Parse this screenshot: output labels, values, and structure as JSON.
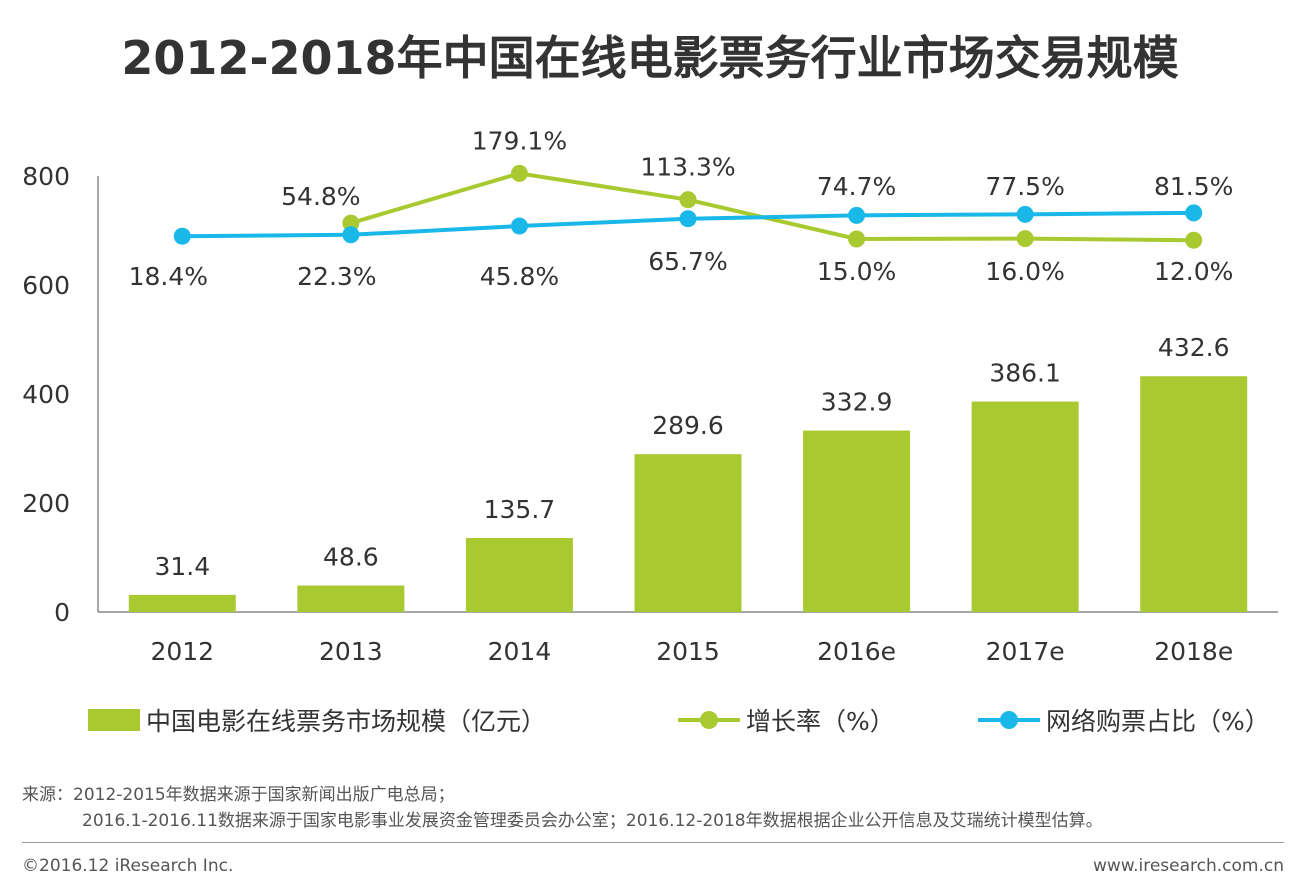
{
  "title": "2012-2018年中国在线电影票务行业市场交易规模",
  "colors": {
    "bar": "#a8c930",
    "growth": "#a8c930",
    "online": "#19b8e8",
    "axis": "#888888",
    "text": "#333333"
  },
  "chart_data": {
    "type": "bar",
    "categories": [
      "2012",
      "2013",
      "2014",
      "2015",
      "2016e",
      "2017e",
      "2018e"
    ],
    "ylim": [
      0,
      800
    ],
    "yticks": [
      "0",
      "200",
      "400",
      "600",
      "800"
    ],
    "series": [
      {
        "name": "中国电影在线票务市场规模（亿元）",
        "type": "bar",
        "values": [
          31.4,
          48.6,
          135.7,
          289.6,
          332.9,
          386.1,
          432.6
        ],
        "labels": [
          "31.4",
          "48.6",
          "135.7",
          "289.6",
          "332.9",
          "386.1",
          "432.6"
        ]
      },
      {
        "name": "增长率（%）",
        "type": "line",
        "values": [
          null,
          54.8,
          179.1,
          113.3,
          15.0,
          16.0,
          12.0
        ],
        "labels": [
          "",
          "54.8%",
          "179.1%",
          "113.3%",
          "15.0%",
          "16.0%",
          "12.0%"
        ]
      },
      {
        "name": "网络购票占比（%）",
        "type": "line",
        "values": [
          18.4,
          22.3,
          45.8,
          65.7,
          74.7,
          77.5,
          81.5
        ],
        "labels": [
          "18.4%",
          "22.3%",
          "45.8%",
          "65.7%",
          "74.7%",
          "77.5%",
          "81.5%"
        ]
      }
    ]
  },
  "legend": {
    "bar_label": "中国电影在线票务市场规模（亿元）",
    "growth_label": "增长率（%）",
    "online_label": "网络购票占比（%）"
  },
  "source": {
    "line1": "来源：2012-2015年数据来源于国家新闻出版广电总局；",
    "line2": "2016.1-2016.11数据来源于国家电影事业发展资金管理委员会办公室；2016.12-2018年数据根据企业公开信息及艾瑞统计模型估算。"
  },
  "footer": {
    "copyright": "©2016.12 iResearch Inc.",
    "website": "www.iresearch.com.cn"
  }
}
